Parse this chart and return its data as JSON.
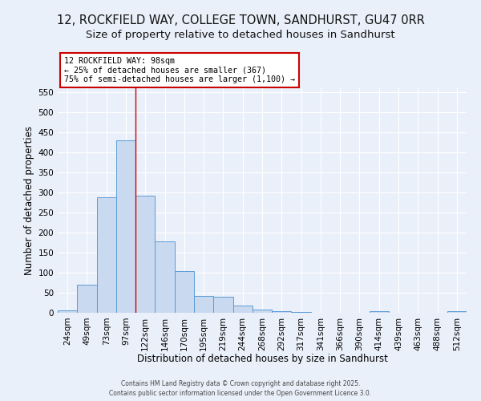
{
  "title_line1": "12, ROCKFIELD WAY, COLLEGE TOWN, SANDHURST, GU47 0RR",
  "title_line2": "Size of property relative to detached houses in Sandhurst",
  "xlabel": "Distribution of detached houses by size in Sandhurst",
  "ylabel": "Number of detached properties",
  "categories": [
    "24sqm",
    "49sqm",
    "73sqm",
    "97sqm",
    "122sqm",
    "146sqm",
    "170sqm",
    "195sqm",
    "219sqm",
    "244sqm",
    "268sqm",
    "292sqm",
    "317sqm",
    "341sqm",
    "366sqm",
    "390sqm",
    "414sqm",
    "439sqm",
    "463sqm",
    "488sqm",
    "512sqm"
  ],
  "values": [
    7,
    70,
    288,
    430,
    292,
    178,
    105,
    42,
    40,
    18,
    8,
    5,
    2,
    1,
    1,
    0,
    4,
    0,
    1,
    0,
    4
  ],
  "bar_color": "#c9d9f0",
  "bar_edge_color": "#5b9bd5",
  "annotation_title": "12 ROCKFIELD WAY: 98sqm",
  "annotation_line2": "← 25% of detached houses are smaller (367)",
  "annotation_line3": "75% of semi-detached houses are larger (1,100) →",
  "annotation_box_color": "#ffffff",
  "annotation_box_edge": "#cc0000",
  "red_line_color": "#cc0000",
  "ylim": [
    0,
    560
  ],
  "yticks": [
    0,
    50,
    100,
    150,
    200,
    250,
    300,
    350,
    400,
    450,
    500,
    550
  ],
  "bg_color": "#eaf0fa",
  "grid_color": "#ffffff",
  "footer": "Contains HM Land Registry data © Crown copyright and database right 2025.\nContains public sector information licensed under the Open Government Licence 3.0.",
  "title_fontsize": 10.5,
  "subtitle_fontsize": 9.5,
  "xlabel_fontsize": 8.5,
  "ylabel_fontsize": 8.5,
  "tick_fontsize": 7.5,
  "footer_fontsize": 5.5
}
